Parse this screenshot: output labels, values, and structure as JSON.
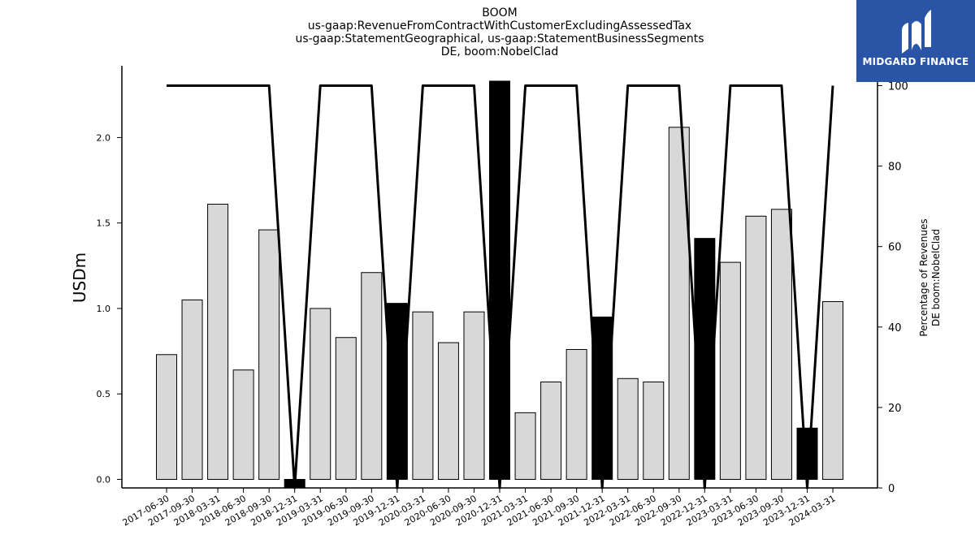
{
  "chart_data": {
    "type": "bar",
    "title_lines": [
      "BOOM",
      "us-gaap:RevenueFromContractWithCustomerExcludingAssessedTax",
      "us-gaap:StatementGeographical, us-gaap:StatementBusinessSegments",
      "DE, boom:NobelClad"
    ],
    "ylabel": "USDm",
    "y2label_lines": [
      "Percentage of Revenues",
      "DE boom:NobelClad"
    ],
    "categories": [
      "2017-06-30",
      "2017-09-30",
      "2018-03-31",
      "2018-06-30",
      "2018-09-30",
      "2018-12-31",
      "2019-03-31",
      "2019-06-30",
      "2019-09-30",
      "2019-12-31",
      "2020-03-31",
      "2020-06-30",
      "2020-09-30",
      "2020-12-31",
      "2021-03-31",
      "2021-06-30",
      "2021-09-30",
      "2021-12-31",
      "2022-03-31",
      "2022-06-30",
      "2022-09-30",
      "2022-12-31",
      "2023-03-31",
      "2023-06-30",
      "2023-09-30",
      "2023-12-31",
      "2024-03-31"
    ],
    "values": [
      0.73,
      1.05,
      1.61,
      0.64,
      1.46,
      -0.05,
      1.0,
      0.83,
      1.21,
      1.03,
      0.98,
      0.8,
      0.98,
      2.33,
      0.39,
      0.57,
      0.76,
      0.95,
      0.59,
      0.57,
      2.06,
      1.41,
      1.27,
      1.54,
      1.58,
      0.3,
      1.04
    ],
    "bar_highlight": [
      false,
      false,
      false,
      false,
      false,
      true,
      false,
      false,
      false,
      true,
      false,
      false,
      false,
      true,
      false,
      false,
      false,
      true,
      false,
      false,
      false,
      true,
      false,
      false,
      false,
      true,
      false
    ],
    "percentage_series": {
      "name": "Percentage of Revenues",
      "values": [
        100,
        100,
        100,
        100,
        100,
        0,
        100,
        100,
        100,
        0,
        100,
        100,
        100,
        0,
        100,
        100,
        100,
        0,
        100,
        100,
        100,
        0,
        100,
        100,
        100,
        0,
        100
      ]
    },
    "ylim": [
      -0.05,
      2.42
    ],
    "y2lim": [
      0,
      100
    ],
    "yticks": [
      0.0,
      0.5,
      1.0,
      1.5,
      2.0
    ],
    "y2ticks": [
      0,
      20,
      40,
      60,
      80,
      100
    ],
    "colors": {
      "bar": "#d8d8d8",
      "bar_highlight": "#000000",
      "line": "#000000"
    }
  },
  "logo": {
    "text": "MIDGARD FINANCE",
    "color": "#2a55a6"
  }
}
